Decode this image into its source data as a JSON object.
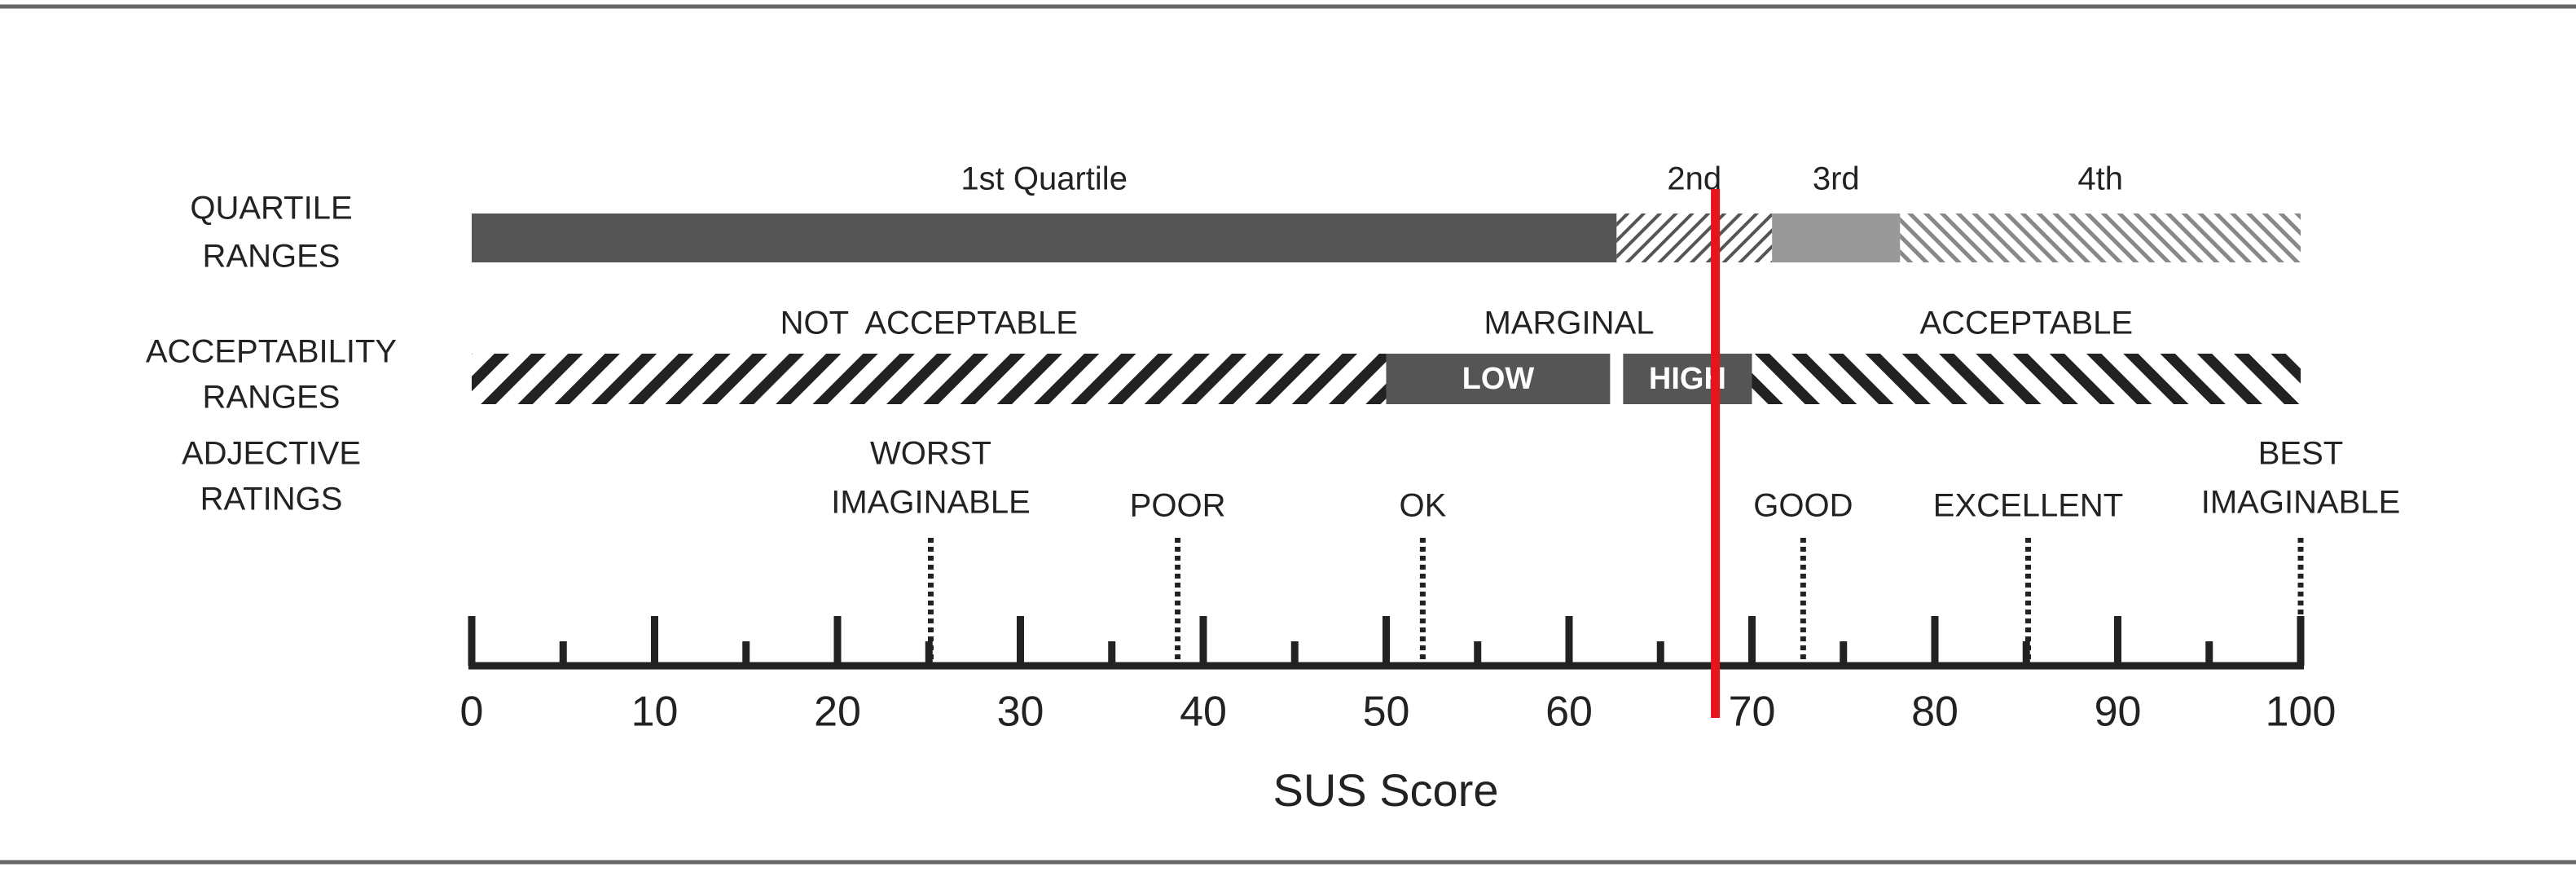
{
  "chart_data": {
    "type": "scale",
    "xlabel": "SUS Score",
    "xlim": [
      0,
      100
    ],
    "xticks": [
      0,
      10,
      20,
      30,
      40,
      50,
      60,
      70,
      80,
      90,
      100
    ],
    "xminor": [
      5,
      15,
      25,
      35,
      45,
      55,
      65,
      75,
      85,
      95
    ],
    "rows": [
      {
        "label": [
          "QUARTILE",
          "RANGES"
        ],
        "segments": [
          {
            "name": "1st Quartile",
            "range": [
              0,
              62.6
            ],
            "style": "solid",
            "color": "#555555"
          },
          {
            "name": "2nd",
            "range": [
              62.6,
              71.1
            ],
            "style": "thin-back",
            "color": "#555555"
          },
          {
            "name": "3rd",
            "range": [
              71.1,
              78.1
            ],
            "style": "solid",
            "color": "#999999"
          },
          {
            "name": "4th",
            "range": [
              78.1,
              100
            ],
            "style": "thin-forward",
            "color": "#888888"
          }
        ]
      },
      {
        "label": [
          "ACCEPTABILITY",
          "RANGES"
        ],
        "segments": [
          {
            "name": "NOT  ACCEPTABLE",
            "range": [
              0,
              50
            ],
            "style": "thick-back",
            "color": "#222222"
          },
          {
            "name": "MARGINAL",
            "range": [
              50,
              70
            ],
            "style": "none",
            "color": "#555555",
            "parts": [
              {
                "name": "LOW",
                "range": [
                  50,
                  62.6
                ],
                "color": "#555555"
              },
              {
                "name": "HIGH",
                "range": [
                  62.6,
                  70
                ],
                "color": "#555555"
              }
            ]
          },
          {
            "name": "ACCEPTABLE",
            "range": [
              70,
              100
            ],
            "style": "thick-forward",
            "color": "#222222"
          }
        ]
      }
    ],
    "adjective_label": [
      "ADJECTIVE",
      "RATINGS"
    ],
    "adjectives": [
      {
        "name": [
          "WORST",
          "IMAGINABLE"
        ],
        "value": 25.1
      },
      {
        "name": [
          "POOR"
        ],
        "value": 38.6
      },
      {
        "name": [
          "OK"
        ],
        "value": 52.0
      },
      {
        "name": [
          "GOOD"
        ],
        "value": 72.8
      },
      {
        "name": [
          "EXCELLENT"
        ],
        "value": 85.1
      },
      {
        "name": [
          "BEST",
          "IMAGINABLE"
        ],
        "value": 100
      }
    ],
    "marker": {
      "value": 68,
      "color": "#e8141b"
    }
  }
}
